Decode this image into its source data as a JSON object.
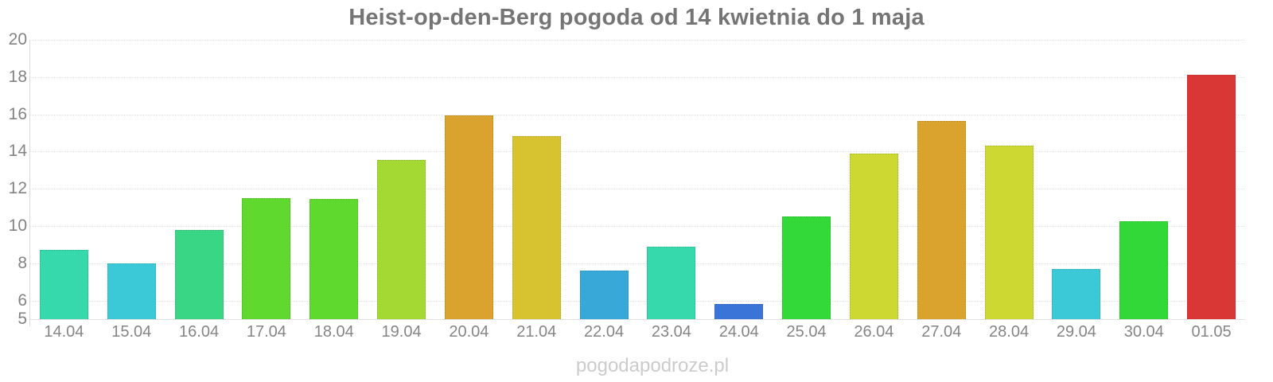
{
  "title": "Heist-op-den-Berg pogoda od 14 kwietnia do 1 maja",
  "watermark": "pogodapodroze.pl",
  "colors": {
    "background": "#ffffff",
    "title_text": "#757575",
    "axis_label_text": "#858585",
    "gridline": "#e3e3e3",
    "axis_line": "#d9d9d9",
    "watermark_text": "#cbcbcb"
  },
  "chart_data": {
    "type": "bar",
    "title": "Heist-op-den-Berg pogoda od 14 kwietnia do 1 maja",
    "xlabel": "",
    "ylabel": "",
    "categories": [
      "14.04",
      "15.04",
      "16.04",
      "17.04",
      "18.04",
      "19.04",
      "20.04",
      "21.04",
      "22.04",
      "23.04",
      "24.04",
      "25.04",
      "26.04",
      "27.04",
      "28.04",
      "29.04",
      "30.04",
      "01.05"
    ],
    "values": [
      8.7,
      8.0,
      9.8,
      11.5,
      11.45,
      13.55,
      15.95,
      14.85,
      7.6,
      8.9,
      5.8,
      10.5,
      13.9,
      15.65,
      14.3,
      7.7,
      10.25,
      18.1
    ],
    "bar_colors": [
      "#35d9ac",
      "#3bc9d8",
      "#38d685",
      "#5fd92e",
      "#5fd92e",
      "#a4d934",
      "#d9a32e",
      "#d7c32f",
      "#38a8d8",
      "#35d9ac",
      "#3a74d8",
      "#33d839",
      "#cdd832",
      "#d9a32e",
      "#cdd832",
      "#3bc9d8",
      "#32d838",
      "#d93636"
    ],
    "ylim": [
      5,
      20
    ],
    "yticks": [
      5,
      6,
      8,
      10,
      12,
      14,
      16,
      18,
      20
    ],
    "grid": "horizontal",
    "legend": "none"
  }
}
